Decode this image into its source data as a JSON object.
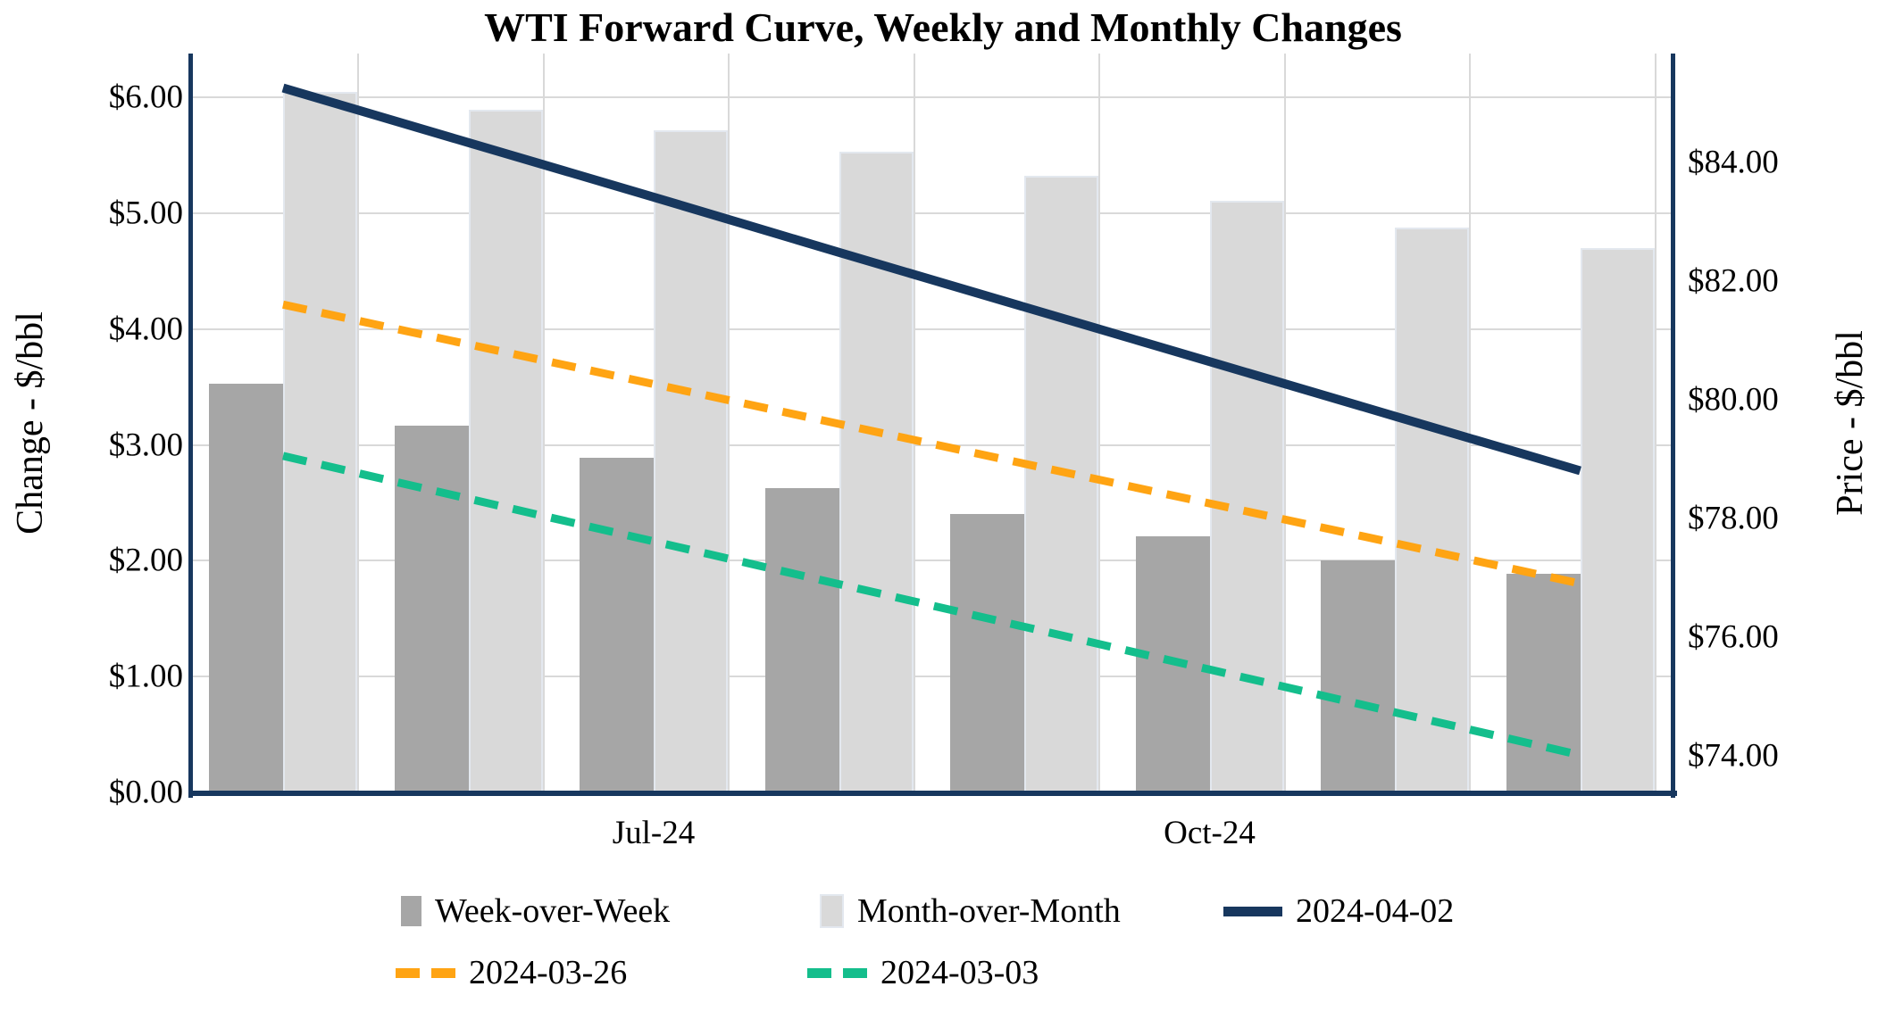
{
  "title": "WTI Forward Curve, Weekly and Monthly Changes",
  "chart_data": {
    "type": "combo-bar-line",
    "num_groups": 8,
    "x_axis": {
      "tick_labels": [
        {
          "label": "Jul-24",
          "group": 3
        },
        {
          "label": "Oct-24",
          "group": 6
        }
      ]
    },
    "left_axis": {
      "title": "Change - $/bbl",
      "min": 0,
      "max_visible": 6.379,
      "ticks": [
        {
          "label": "$0.00",
          "value": 0
        },
        {
          "label": "$1.00",
          "value": 1
        },
        {
          "label": "$2.00",
          "value": 2
        },
        {
          "label": "$3.00",
          "value": 3
        },
        {
          "label": "$4.00",
          "value": 4
        },
        {
          "label": "$5.00",
          "value": 5
        },
        {
          "label": "$6.00",
          "value": 6
        }
      ]
    },
    "right_axis": {
      "title": "Price - $/bbl",
      "min": 73.38,
      "max": 85.83,
      "ticks": [
        {
          "label": "$74.00",
          "value": 74
        },
        {
          "label": "$76.00",
          "value": 76
        },
        {
          "label": "$78.00",
          "value": 78
        },
        {
          "label": "$80.00",
          "value": 80
        },
        {
          "label": "$82.00",
          "value": 82
        },
        {
          "label": "$84.00",
          "value": 84
        }
      ]
    },
    "bar_series": [
      {
        "name": "Week-over-Week",
        "color": "#a6a6a6",
        "values": [
          3.53,
          3.17,
          2.89,
          2.63,
          2.4,
          2.21,
          2.0,
          1.89
        ]
      },
      {
        "name": "Month-over-Month",
        "color": "#d9d9d9",
        "values": [
          6.05,
          5.89,
          5.72,
          5.53,
          5.32,
          5.11,
          4.88,
          4.7
        ]
      }
    ],
    "line_series": [
      {
        "name": "2024-04-02",
        "color": "#17375e",
        "dashed": false,
        "values": [
          85.25,
          84.33,
          83.41,
          82.48,
          81.56,
          80.64,
          79.72,
          78.8
        ]
      },
      {
        "name": "2024-03-26",
        "color": "#ffa413",
        "dashed": true,
        "values": [
          81.6,
          80.93,
          80.26,
          79.59,
          78.92,
          78.25,
          77.58,
          76.9
        ]
      },
      {
        "name": "2024-03-03",
        "color": "#14be8c",
        "dashed": true,
        "values": [
          79.05,
          78.33,
          77.61,
          76.89,
          76.17,
          75.45,
          74.73,
          74.01
        ]
      }
    ],
    "grid_color": "#d9d9d9",
    "axis_color": "#17375e"
  }
}
